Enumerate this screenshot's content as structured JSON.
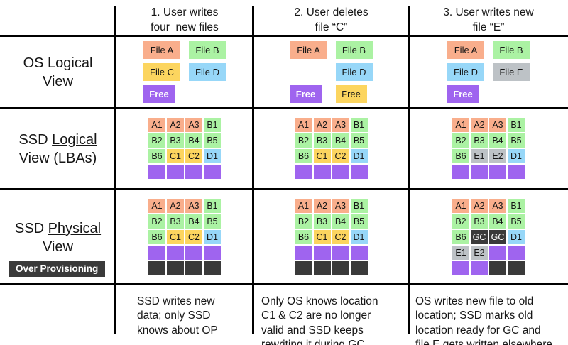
{
  "colors": {
    "salmon": "#F9AE8C",
    "green": "#ABF2A3",
    "yellow": "#FCD55F",
    "blue": "#97D7F8",
    "purple": "#9F64EF",
    "gray": "#BDC2C6",
    "dark": "#3A3A3A",
    "line": "#000000"
  },
  "row_labels": {
    "os": {
      "line1": "OS Logical",
      "line2": "View"
    },
    "ssd_logical": {
      "prefix": "SSD ",
      "underlined": "Logical",
      "line2": "View (LBAs)"
    },
    "ssd_physical": {
      "prefix": "SSD ",
      "underlined": "Physical",
      "line2": "View"
    },
    "over_provisioning": "Over Provisioning"
  },
  "columns": [
    {
      "header": "1. User writes\nfour  new files",
      "os_view": [
        [
          {
            "label": "File A",
            "color": "salmon"
          },
          {
            "label": "File B",
            "color": "green"
          }
        ],
        [
          {
            "label": "File C",
            "color": "yellow"
          },
          {
            "label": "File D",
            "color": "blue"
          }
        ],
        [
          {
            "label": "Free",
            "color": "purple"
          },
          null
        ]
      ],
      "ssd_logical_grid": [
        [
          {
            "t": "A1",
            "c": "salmon"
          },
          {
            "t": "A2",
            "c": "salmon"
          },
          {
            "t": "A3",
            "c": "salmon"
          },
          {
            "t": "B1",
            "c": "green"
          }
        ],
        [
          {
            "t": "B2",
            "c": "green"
          },
          {
            "t": "B3",
            "c": "green"
          },
          {
            "t": "B4",
            "c": "green"
          },
          {
            "t": "B5",
            "c": "green"
          }
        ],
        [
          {
            "t": "B6",
            "c": "green"
          },
          {
            "t": "C1",
            "c": "yellow"
          },
          {
            "t": "C2",
            "c": "yellow"
          },
          {
            "t": "D1",
            "c": "blue"
          }
        ],
        [
          {
            "t": "",
            "c": "purple"
          },
          {
            "t": "",
            "c": "purple"
          },
          {
            "t": "",
            "c": "purple"
          },
          {
            "t": "",
            "c": "purple"
          }
        ]
      ],
      "ssd_physical_grid": [
        [
          {
            "t": "A1",
            "c": "salmon"
          },
          {
            "t": "A2",
            "c": "salmon"
          },
          {
            "t": "A3",
            "c": "salmon"
          },
          {
            "t": "B1",
            "c": "green"
          }
        ],
        [
          {
            "t": "B2",
            "c": "green"
          },
          {
            "t": "B3",
            "c": "green"
          },
          {
            "t": "B4",
            "c": "green"
          },
          {
            "t": "B5",
            "c": "green"
          }
        ],
        [
          {
            "t": "B6",
            "c": "green"
          },
          {
            "t": "C1",
            "c": "yellow"
          },
          {
            "t": "C2",
            "c": "yellow"
          },
          {
            "t": "D1",
            "c": "blue"
          }
        ],
        [
          {
            "t": "",
            "c": "purple"
          },
          {
            "t": "",
            "c": "purple"
          },
          {
            "t": "",
            "c": "purple"
          },
          {
            "t": "",
            "c": "purple"
          }
        ],
        [
          {
            "t": "",
            "c": "dark"
          },
          {
            "t": "",
            "c": "dark"
          },
          {
            "t": "",
            "c": "dark"
          },
          {
            "t": "",
            "c": "dark"
          }
        ]
      ],
      "caption": "SSD writes new\ndata; only SSD\nknows about OP"
    },
    {
      "header": "2. User deletes\nfile “C”",
      "os_view": [
        [
          {
            "label": "File A",
            "color": "salmon"
          },
          {
            "label": "File B",
            "color": "green"
          }
        ],
        [
          null,
          {
            "label": "File D",
            "color": "blue"
          }
        ],
        [
          {
            "label": "Free",
            "color": "purple"
          },
          {
            "label": "Free",
            "color": "yellow"
          }
        ]
      ],
      "ssd_logical_grid": [
        [
          {
            "t": "A1",
            "c": "salmon"
          },
          {
            "t": "A2",
            "c": "salmon"
          },
          {
            "t": "A3",
            "c": "salmon"
          },
          {
            "t": "B1",
            "c": "green"
          }
        ],
        [
          {
            "t": "B2",
            "c": "green"
          },
          {
            "t": "B3",
            "c": "green"
          },
          {
            "t": "B4",
            "c": "green"
          },
          {
            "t": "B5",
            "c": "green"
          }
        ],
        [
          {
            "t": "B6",
            "c": "green"
          },
          {
            "t": "C1",
            "c": "yellow"
          },
          {
            "t": "C2",
            "c": "yellow"
          },
          {
            "t": "D1",
            "c": "blue"
          }
        ],
        [
          {
            "t": "",
            "c": "purple"
          },
          {
            "t": "",
            "c": "purple"
          },
          {
            "t": "",
            "c": "purple"
          },
          {
            "t": "",
            "c": "purple"
          }
        ]
      ],
      "ssd_physical_grid": [
        [
          {
            "t": "A1",
            "c": "salmon"
          },
          {
            "t": "A2",
            "c": "salmon"
          },
          {
            "t": "A3",
            "c": "salmon"
          },
          {
            "t": "B1",
            "c": "green"
          }
        ],
        [
          {
            "t": "B2",
            "c": "green"
          },
          {
            "t": "B3",
            "c": "green"
          },
          {
            "t": "B4",
            "c": "green"
          },
          {
            "t": "B5",
            "c": "green"
          }
        ],
        [
          {
            "t": "B6",
            "c": "green"
          },
          {
            "t": "C1",
            "c": "yellow"
          },
          {
            "t": "C2",
            "c": "yellow"
          },
          {
            "t": "D1",
            "c": "blue"
          }
        ],
        [
          {
            "t": "",
            "c": "purple"
          },
          {
            "t": "",
            "c": "purple"
          },
          {
            "t": "",
            "c": "purple"
          },
          {
            "t": "",
            "c": "purple"
          }
        ],
        [
          {
            "t": "",
            "c": "dark"
          },
          {
            "t": "",
            "c": "dark"
          },
          {
            "t": "",
            "c": "dark"
          },
          {
            "t": "",
            "c": "dark"
          }
        ]
      ],
      "caption": "Only OS knows location\nC1 & C2 are no longer\nvalid and SSD keeps\nrewriting it during GC"
    },
    {
      "header": "3. User writes new\nfile “E”",
      "os_view": [
        [
          {
            "label": "File A",
            "color": "salmon"
          },
          {
            "label": "File B",
            "color": "green"
          }
        ],
        [
          {
            "label": "File D",
            "color": "blue"
          },
          {
            "label": "File E",
            "color": "gray"
          }
        ],
        [
          {
            "label": "Free",
            "color": "purple"
          },
          null
        ]
      ],
      "ssd_logical_grid": [
        [
          {
            "t": "A1",
            "c": "salmon"
          },
          {
            "t": "A2",
            "c": "salmon"
          },
          {
            "t": "A3",
            "c": "salmon"
          },
          {
            "t": "B1",
            "c": "green"
          }
        ],
        [
          {
            "t": "B2",
            "c": "green"
          },
          {
            "t": "B3",
            "c": "green"
          },
          {
            "t": "B4",
            "c": "green"
          },
          {
            "t": "B5",
            "c": "green"
          }
        ],
        [
          {
            "t": "B6",
            "c": "green"
          },
          {
            "t": "E1",
            "c": "gray"
          },
          {
            "t": "E2",
            "c": "gray"
          },
          {
            "t": "D1",
            "c": "blue"
          }
        ],
        [
          {
            "t": "",
            "c": "purple"
          },
          {
            "t": "",
            "c": "purple"
          },
          {
            "t": "",
            "c": "purple"
          },
          {
            "t": "",
            "c": "purple"
          }
        ]
      ],
      "ssd_physical_grid": [
        [
          {
            "t": "A1",
            "c": "salmon"
          },
          {
            "t": "A2",
            "c": "salmon"
          },
          {
            "t": "A3",
            "c": "salmon"
          },
          {
            "t": "B1",
            "c": "green"
          }
        ],
        [
          {
            "t": "B2",
            "c": "green"
          },
          {
            "t": "B3",
            "c": "green"
          },
          {
            "t": "B4",
            "c": "green"
          },
          {
            "t": "B5",
            "c": "green"
          }
        ],
        [
          {
            "t": "B6",
            "c": "green"
          },
          {
            "t": "GC",
            "c": "dark"
          },
          {
            "t": "GC",
            "c": "dark"
          },
          {
            "t": "D1",
            "c": "blue"
          }
        ],
        [
          {
            "t": "E1",
            "c": "gray"
          },
          {
            "t": "E2",
            "c": "gray"
          },
          {
            "t": "",
            "c": "purple"
          },
          {
            "t": "",
            "c": "purple"
          }
        ],
        [
          {
            "t": "",
            "c": "purple"
          },
          {
            "t": "",
            "c": "purple"
          },
          {
            "t": "",
            "c": "dark"
          },
          {
            "t": "",
            "c": "dark"
          }
        ]
      ],
      "caption": "OS writes new file to old\nlocation; SSD marks old\nlocation ready for GC and\nfile E gets written elsewhere"
    }
  ]
}
